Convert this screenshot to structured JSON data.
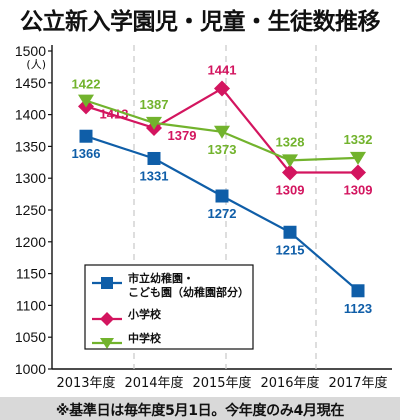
{
  "chart_data": {
    "type": "line",
    "title": "公立新入学園児・児童・生徒数推移",
    "ylabel": "(人)",
    "xlabel": "",
    "categories": [
      "2013年度",
      "2014年度",
      "2015年度",
      "2016年度",
      "2017年度"
    ],
    "ylim": [
      1000,
      1500
    ],
    "yticks": [
      1000,
      1050,
      1100,
      1150,
      1200,
      1250,
      1300,
      1350,
      1400,
      1450,
      1500
    ],
    "grid": "vertical-dashed",
    "legend_position": "lower-left",
    "series": [
      {
        "name": "市立幼稚園・こども園（幼稚園部分）",
        "legend_lines": [
          "市立幼稚園・",
          "こども園（幼稚園部分）"
        ],
        "values": [
          1366,
          1331,
          1272,
          1215,
          1123
        ],
        "color": "#0f5ea8",
        "marker": "square",
        "data_labels": [
          "1366",
          "1331",
          "1272",
          "1215",
          "1123"
        ]
      },
      {
        "name": "小学校",
        "legend_lines": [
          "小学校"
        ],
        "values": [
          1413,
          1379,
          1441,
          1309,
          1309
        ],
        "color": "#d3155f",
        "marker": "diamond",
        "data_labels": [
          "1413",
          "1379",
          "1441",
          "1309",
          "1309"
        ]
      },
      {
        "name": "中学校",
        "legend_lines": [
          "中学校"
        ],
        "values": [
          1422,
          1387,
          1373,
          1328,
          1332
        ],
        "color": "#72b32d",
        "marker": "triangle-down",
        "data_labels": [
          "1422",
          "1387",
          "1373",
          "1328",
          "1332"
        ]
      }
    ]
  },
  "footnote": "※基準日は毎年度5月1日。今年度のみ4月現在"
}
